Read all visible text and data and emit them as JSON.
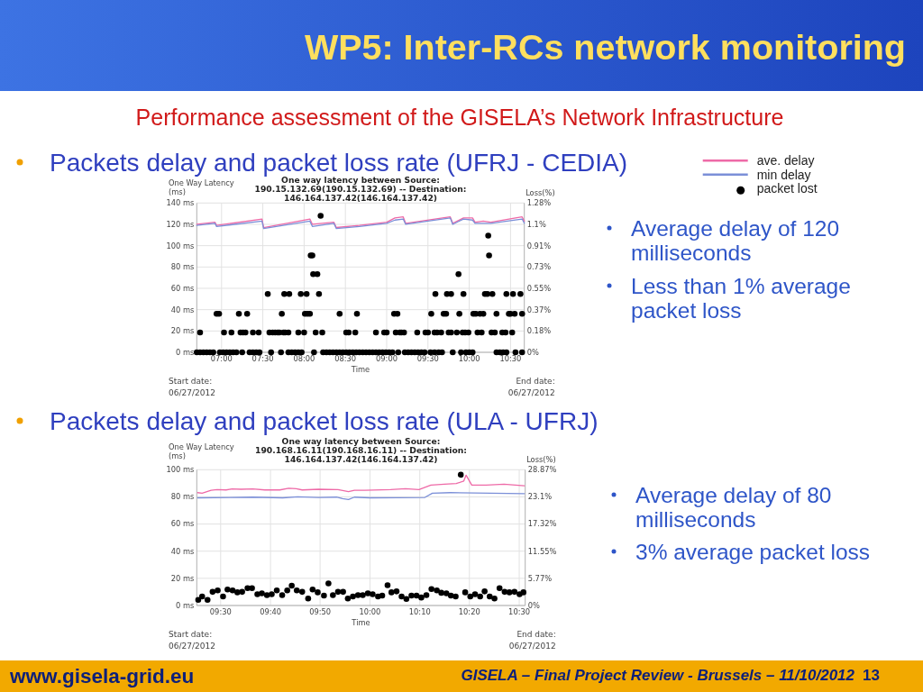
{
  "chart_data": [
    {
      "type": "other",
      "title": "WP5: Inter-RCs network monitoring",
      "subtitle": "Performance assessment of the GISELA’s Network Infrastructure",
      "annotations": [
        "www.gisela-grid.eu",
        "GISELA – Final Project Review - Brussels – 11/10/2012",
        "13"
      ]
    },
    {
      "type": "line",
      "title": "One way latency between Source: 190.15.132.69(190.15.132.69) -- Destination: 146.164.137.42(146.164.137.42)",
      "xlabel": "Time",
      "ylabel": "One Way Latency (ms)",
      "y2label": "Loss(%)",
      "annotations": [
        "Packets delay and packet loss rate (UFRJ - CEDIA)",
        "Start date: 06/27/2012",
        "End date: 06/27/2012",
        "Average delay of 120 milliseconds",
        "Less than 1% average packet loss"
      ],
      "xlim": [
        6.7,
        10.667
      ],
      "xticks": [
        {
          "value": 7,
          "label": "07:00"
        },
        {
          "value": 7.5,
          "label": "07:30"
        },
        {
          "value": 8,
          "label": "08:00"
        },
        {
          "value": 8.5,
          "label": "08:30"
        },
        {
          "value": 9,
          "label": "09:00"
        },
        {
          "value": 9.5,
          "label": "09:30"
        },
        {
          "value": 10,
          "label": "10:00"
        },
        {
          "value": 10.5,
          "label": "10:30"
        }
      ],
      "ylim": [
        0,
        140
      ],
      "yticks": [
        {
          "value": 0,
          "label": "0 ms"
        },
        {
          "value": 20,
          "label": "20 ms"
        },
        {
          "value": 40,
          "label": "40 ms"
        },
        {
          "value": 60,
          "label": "60 ms"
        },
        {
          "value": 80,
          "label": "80 ms"
        },
        {
          "value": 100,
          "label": "100 ms"
        },
        {
          "value": 120,
          "label": "120 ms"
        },
        {
          "value": 140,
          "label": "140 ms"
        }
      ],
      "y2lim": [
        0,
        1.28
      ],
      "y2ticks": [
        {
          "value": 0,
          "label": "0%"
        },
        {
          "value": 0.183,
          "label": "0.18%"
        },
        {
          "value": 0.366,
          "label": "0.37%"
        },
        {
          "value": 0.549,
          "label": "0.55%"
        },
        {
          "value": 0.731,
          "label": "0.73%"
        },
        {
          "value": 0.914,
          "label": "0.91%"
        },
        {
          "value": 1.097,
          "label": "1.1%"
        },
        {
          "value": 1.28,
          "label": "1.28%"
        }
      ],
      "grid": true,
      "legend": "top right",
      "series": [
        {
          "name": "ave. delay",
          "type": "line",
          "color": "#ee6aa7",
          "x": [
            6.7,
            6.92,
            6.94,
            7.49,
            7.51,
            8.07,
            8.1,
            8.36,
            8.39,
            8.67,
            9.0,
            9.1,
            9.2,
            9.23,
            9.77,
            9.8,
            9.93,
            10.04,
            10.07,
            10.17,
            10.26,
            10.64,
            10.667
          ],
          "values": [
            120,
            122,
            119,
            125,
            117,
            125,
            120,
            122,
            117,
            119,
            122,
            126,
            127,
            121,
            127,
            121,
            126,
            126,
            122,
            123,
            122,
            127,
            123
          ]
        },
        {
          "name": "min delay",
          "type": "line",
          "color": "#7b8fd8",
          "x": [
            6.7,
            6.92,
            6.94,
            7.49,
            7.51,
            8.07,
            8.1,
            8.36,
            8.39,
            8.67,
            9.0,
            9.1,
            9.2,
            9.23,
            9.77,
            9.8,
            9.93,
            10.04,
            10.07,
            10.17,
            10.26,
            10.64,
            10.667
          ],
          "values": [
            119,
            121,
            118,
            123,
            116,
            123,
            118,
            121,
            116,
            118,
            121,
            124,
            125,
            120,
            126,
            120,
            125,
            124,
            121,
            121,
            121,
            125,
            121
          ]
        },
        {
          "name": "packet lost",
          "type": "scatter",
          "axis": "y2",
          "marker": "circle",
          "color": "#000000",
          "x": [
            6.7,
            6.74,
            6.78,
            6.82,
            6.86,
            6.9,
            6.98,
            7.02,
            7.06,
            7.1,
            7.14,
            7.18,
            7.25,
            7.34,
            7.38,
            7.42,
            7.46,
            7.6,
            7.72,
            7.81,
            7.85,
            7.89,
            7.93,
            7.97,
            8.12,
            8.23,
            8.27,
            8.31,
            8.35,
            8.39,
            8.43,
            8.47,
            8.51,
            8.55,
            8.59,
            8.63,
            8.67,
            8.71,
            8.75,
            8.79,
            8.83,
            8.87,
            8.91,
            8.95,
            8.99,
            9.03,
            9.07,
            9.14,
            9.22,
            9.26,
            9.3,
            9.34,
            9.38,
            9.42,
            9.46,
            9.53,
            9.58,
            9.63,
            9.67,
            9.8,
            9.9,
            9.96,
            10,
            10.04,
            10.33,
            10.37,
            10.41,
            10.45,
            10.56,
            10.64,
            6.74,
            7.03,
            7.12,
            7.23,
            7.26,
            7.29,
            7.38,
            7.45,
            7.58,
            7.62,
            7.65,
            7.68,
            7.7,
            7.75,
            7.77,
            7.81,
            7.93,
            8,
            8.14,
            8.22,
            8.51,
            8.54,
            8.62,
            8.87,
            8.97,
            9,
            9.11,
            9.16,
            9.18,
            9.21,
            9.37,
            9.47,
            9.5,
            9.58,
            9.61,
            9.66,
            9.75,
            9.78,
            9.85,
            9.92,
            9.95,
            9.99,
            10.1,
            10.15,
            10.27,
            10.31,
            10.4,
            10.44,
            10.52,
            6.94,
            6.97,
            7.21,
            7.31,
            7.73,
            8.01,
            8.04,
            8.07,
            8.43,
            8.64,
            9.09,
            9.13,
            9.54,
            9.69,
            9.72,
            9.88,
            10.05,
            10.08,
            10.13,
            10.17,
            10.33,
            10.48,
            10.5,
            10.55,
            10.64,
            7.56,
            7.76,
            7.82,
            7.96,
            8.03,
            8.18,
            9.59,
            9.73,
            9.78,
            9.93,
            10.19,
            10.22,
            10.28,
            10.45,
            10.53,
            10.62,
            8.11,
            8.16,
            9.87,
            8.08,
            8.1,
            10.24,
            10.23,
            8.2
          ],
          "values": [
            0,
            0,
            0,
            0,
            0,
            0,
            0,
            0,
            0,
            0,
            0,
            0,
            0,
            0,
            0,
            0,
            0,
            0,
            0,
            0,
            0,
            0,
            0,
            0,
            0,
            0,
            0,
            0,
            0,
            0,
            0,
            0,
            0,
            0,
            0,
            0,
            0,
            0,
            0,
            0,
            0,
            0,
            0,
            0,
            0,
            0,
            0,
            0,
            0,
            0,
            0,
            0,
            0,
            0,
            0,
            0,
            0,
            0,
            0,
            0,
            0,
            0,
            0,
            0,
            0,
            0,
            0,
            0,
            0,
            0,
            0.17,
            0.17,
            0.17,
            0.17,
            0.17,
            0.17,
            0.17,
            0.17,
            0.17,
            0.17,
            0.17,
            0.17,
            0.17,
            0.17,
            0.17,
            0.17,
            0.17,
            0.17,
            0.17,
            0.17,
            0.17,
            0.17,
            0.17,
            0.17,
            0.17,
            0.17,
            0.17,
            0.17,
            0.17,
            0.17,
            0.17,
            0.17,
            0.17,
            0.17,
            0.17,
            0.17,
            0.17,
            0.17,
            0.17,
            0.17,
            0.17,
            0.17,
            0.17,
            0.17,
            0.17,
            0.17,
            0.17,
            0.17,
            0.17,
            0.33,
            0.33,
            0.33,
            0.33,
            0.33,
            0.33,
            0.33,
            0.33,
            0.33,
            0.33,
            0.33,
            0.33,
            0.33,
            0.33,
            0.33,
            0.33,
            0.33,
            0.33,
            0.33,
            0.33,
            0.33,
            0.33,
            0.33,
            0.33,
            0.33,
            0.5,
            0.5,
            0.5,
            0.5,
            0.5,
            0.5,
            0.5,
            0.5,
            0.5,
            0.5,
            0.5,
            0.5,
            0.5,
            0.5,
            0.5,
            0.5,
            0.67,
            0.67,
            0.67,
            0.83,
            0.83,
            0.83,
            1.0,
            1.17
          ]
        }
      ]
    },
    {
      "type": "line",
      "title": "One way latency between Source: 190.168.16.11(190.168.16.11) -- Destination: 146.164.137.42(146.164.137.42)",
      "xlabel": "Time",
      "ylabel": "One Way Latency (ms)",
      "y2label": "Loss(%)",
      "annotations": [
        "Packets delay and packet loss rate (ULA - UFRJ)",
        "Start date: 06/27/2012",
        "End date: 06/27/2012",
        "Average delay of 80 milliseconds",
        "3% average packet loss"
      ],
      "xlim": [
        9.42,
        10.52
      ],
      "xticks": [
        {
          "value": 9.5,
          "label": "09:30"
        },
        {
          "value": 9.667,
          "label": "09:40"
        },
        {
          "value": 9.833,
          "label": "09:50"
        },
        {
          "value": 10,
          "label": "10:00"
        },
        {
          "value": 10.167,
          "label": "10:10"
        },
        {
          "value": 10.333,
          "label": "10:20"
        },
        {
          "value": 10.5,
          "label": "10:30"
        }
      ],
      "ylim": [
        0,
        100
      ],
      "yticks": [
        {
          "value": 0,
          "label": "0 ms"
        },
        {
          "value": 20,
          "label": "20 ms"
        },
        {
          "value": 40,
          "label": "40 ms"
        },
        {
          "value": 60,
          "label": "60 ms"
        },
        {
          "value": 80,
          "label": "80 ms"
        },
        {
          "value": 100,
          "label": "100 ms"
        }
      ],
      "y2lim": [
        0,
        28.87
      ],
      "y2ticks": [
        {
          "value": 0,
          "label": "0%"
        },
        {
          "value": 5.774,
          "label": "5.77%"
        },
        {
          "value": 11.548,
          "label": "11.55%"
        },
        {
          "value": 17.322,
          "label": "17.32%"
        },
        {
          "value": 23.096,
          "label": "23.1%"
        },
        {
          "value": 28.87,
          "label": "28.87%"
        }
      ],
      "grid": true,
      "series": [
        {
          "type": "line",
          "color": "#ee6aa7",
          "x": [
            9.423,
            9.438,
            9.468,
            9.488,
            9.518,
            9.538,
            9.568,
            9.608,
            9.648,
            9.698,
            9.728,
            9.753,
            9.773,
            9.828,
            9.893,
            9.928,
            9.948,
            9.983,
            10.069,
            10.119,
            10.164,
            10.204,
            10.249,
            10.289,
            10.314,
            10.322,
            10.341,
            10.389,
            10.449,
            10.517
          ],
          "values": [
            83.1,
            82.7,
            84.9,
            85.3,
            85.1,
            85.8,
            85.6,
            85.8,
            85.1,
            85.1,
            86.4,
            86.0,
            85.1,
            85.6,
            85.3,
            83.8,
            84.9,
            84.9,
            85.3,
            86.0,
            85.3,
            88.7,
            89.3,
            89.8,
            91.6,
            96.0,
            88.7,
            88.7,
            89.3,
            88.2
          ]
        },
        {
          "type": "line",
          "color": "#7b8fd8",
          "x": [
            9.423,
            9.608,
            9.708,
            9.758,
            9.828,
            9.888,
            9.908,
            9.928,
            9.948,
            10.0,
            10.184,
            10.209,
            10.269,
            10.517
          ],
          "values": [
            79.3,
            79.8,
            79.3,
            80.0,
            79.6,
            79.8,
            78.7,
            78.0,
            79.8,
            79.3,
            79.6,
            82.7,
            83.1,
            82.4
          ]
        },
        {
          "type": "scatter",
          "axis": "y2",
          "marker": "circle",
          "color": "#000000",
          "x": [
            9.425,
            9.438,
            9.456,
            9.473,
            9.49,
            9.508,
            9.523,
            9.54,
            9.556,
            9.572,
            9.59,
            9.605,
            9.623,
            9.638,
            9.655,
            9.671,
            9.688,
            9.706,
            9.723,
            9.738,
            9.755,
            9.773,
            9.793,
            9.808,
            9.825,
            9.846,
            9.861,
            9.876,
            9.893,
            9.91,
            9.926,
            9.943,
            9.96,
            9.976,
            9.993,
            10.009,
            10.027,
            10.041,
            10.059,
            10.072,
            10.089,
            10.106,
            10.122,
            10.139,
            10.156,
            10.172,
            10.189,
            10.206,
            10.224,
            10.239,
            10.256,
            10.271,
            10.287,
            10.304,
            10.319,
            10.336,
            10.352,
            10.369,
            10.384,
            10.401,
            10.417,
            10.434,
            10.451,
            10.467,
            10.484,
            10.501,
            10.514
          ],
          "values": [
            1.2,
            1.9,
            1.2,
            2.9,
            3.2,
            1.9,
            3.4,
            3.2,
            2.8,
            2.9,
            3.7,
            3.7,
            2.4,
            2.6,
            2.2,
            2.4,
            3.2,
            2.2,
            3.2,
            4.2,
            3.2,
            2.9,
            1.5,
            3.4,
            2.8,
            2.1,
            4.7,
            2.2,
            2.9,
            2.9,
            1.5,
            1.9,
            2.2,
            2.2,
            2.6,
            2.4,
            1.9,
            2.1,
            4.3,
            2.8,
            3.0,
            1.9,
            1.4,
            2.1,
            2.1,
            1.7,
            2.2,
            3.5,
            3.2,
            2.7,
            2.6,
            2.1,
            1.9,
            27.8,
            2.8,
            1.9,
            2.4,
            1.9,
            3.0,
            1.9,
            1.5,
            3.7,
            2.9,
            2.8,
            2.9,
            2.4,
            2.8
          ]
        }
      ]
    }
  ]
}
